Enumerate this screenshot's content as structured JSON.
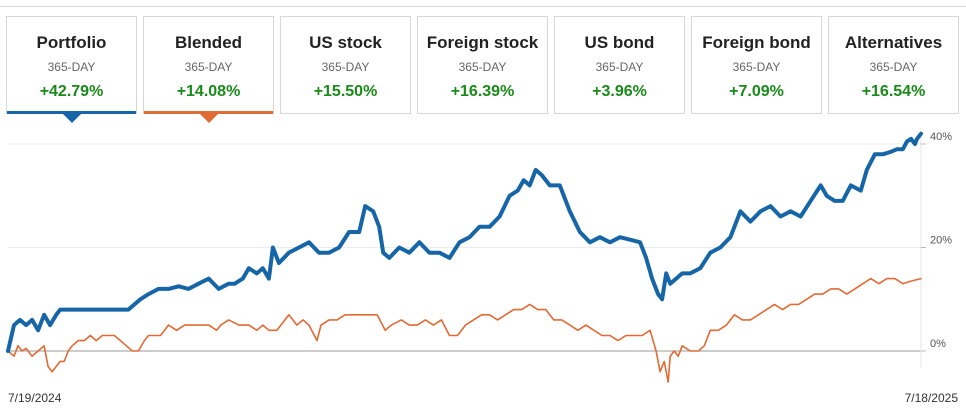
{
  "tabs": [
    {
      "label": "Portfolio",
      "period": "365-DAY",
      "return": "+42.79%",
      "selected": true,
      "underline_color": "#1565a7"
    },
    {
      "label": "Blended",
      "period": "365-DAY",
      "return": "+14.08%",
      "selected": true,
      "underline_color": "#e06b35"
    },
    {
      "label": "US stock",
      "period": "365-DAY",
      "return": "+15.50%",
      "selected": false
    },
    {
      "label": "Foreign stock",
      "period": "365-DAY",
      "return": "+16.39%",
      "selected": false
    },
    {
      "label": "US bond",
      "period": "365-DAY",
      "return": "+3.96%",
      "selected": false
    },
    {
      "label": "Foreign bond",
      "period": "365-DAY",
      "return": "+7.09%",
      "selected": false
    },
    {
      "label": "Alternatives",
      "period": "365-DAY",
      "return": "+16.54%",
      "selected": false
    }
  ],
  "colors": {
    "positive": "#1a8a1a",
    "portfolio": "#1565a7",
    "blended": "#e06b35",
    "zero_line": "#999999",
    "grid": "#ececec"
  },
  "chart_data": {
    "type": "line",
    "x_start_label": "7/19/2024",
    "x_end_label": "7/18/2025",
    "ylim": [
      -6,
      43
    ],
    "yticks": [
      0,
      20,
      40
    ],
    "ytick_labels": [
      "0%",
      "20%",
      "40%"
    ],
    "grid": true,
    "legend": "none",
    "series": [
      {
        "name": "Portfolio",
        "color": "#1565a7",
        "points": [
          [
            0,
            0
          ],
          [
            3,
            5
          ],
          [
            6,
            6
          ],
          [
            9,
            5
          ],
          [
            12,
            6
          ],
          [
            15,
            4
          ],
          [
            18,
            7
          ],
          [
            21,
            5
          ],
          [
            24,
            7
          ],
          [
            26,
            8
          ],
          [
            30,
            8
          ],
          [
            40,
            8
          ],
          [
            50,
            8
          ],
          [
            60,
            8
          ],
          [
            63,
            9
          ],
          [
            66,
            10
          ],
          [
            70,
            11
          ],
          [
            75,
            12
          ],
          [
            80,
            12
          ],
          [
            85,
            12.5
          ],
          [
            90,
            12
          ],
          [
            95,
            13
          ],
          [
            100,
            14
          ],
          [
            105,
            12
          ],
          [
            110,
            13
          ],
          [
            113,
            13
          ],
          [
            117,
            14
          ],
          [
            120,
            16
          ],
          [
            124,
            15
          ],
          [
            127,
            16
          ],
          [
            130,
            14
          ],
          [
            132,
            20
          ],
          [
            135,
            17
          ],
          [
            140,
            19
          ],
          [
            145,
            20
          ],
          [
            150,
            21
          ],
          [
            155,
            19
          ],
          [
            160,
            19
          ],
          [
            165,
            20
          ],
          [
            170,
            23
          ],
          [
            175,
            23
          ],
          [
            178,
            28
          ],
          [
            182,
            27
          ],
          [
            185,
            24
          ],
          [
            187,
            19
          ],
          [
            190,
            18
          ],
          [
            195,
            20
          ],
          [
            200,
            19
          ],
          [
            205,
            21
          ],
          [
            210,
            19
          ],
          [
            215,
            19
          ],
          [
            220,
            18
          ],
          [
            225,
            21
          ],
          [
            230,
            22
          ],
          [
            235,
            24
          ],
          [
            240,
            24
          ],
          [
            245,
            26
          ],
          [
            250,
            30
          ],
          [
            254,
            31
          ],
          [
            257,
            33
          ],
          [
            260,
            32
          ],
          [
            263,
            35
          ],
          [
            266,
            34
          ],
          [
            270,
            32
          ],
          [
            275,
            32
          ],
          [
            280,
            27
          ],
          [
            285,
            23
          ],
          [
            290,
            21
          ],
          [
            295,
            22
          ],
          [
            300,
            21
          ],
          [
            305,
            22
          ],
          [
            310,
            21.5
          ],
          [
            315,
            21
          ],
          [
            318,
            18
          ],
          [
            321,
            14
          ],
          [
            324,
            11
          ],
          [
            326,
            10
          ],
          [
            328,
            15
          ],
          [
            330,
            13
          ],
          [
            333,
            14
          ],
          [
            336,
            15
          ],
          [
            340,
            15
          ],
          [
            345,
            16
          ],
          [
            350,
            19
          ],
          [
            355,
            20
          ],
          [
            360,
            22
          ],
          [
            365,
            27
          ],
          [
            370,
            25
          ],
          [
            375,
            27
          ],
          [
            380,
            28
          ],
          [
            385,
            26
          ],
          [
            390,
            27
          ],
          [
            395,
            26
          ],
          [
            400,
            29
          ],
          [
            405,
            32
          ],
          [
            408,
            30
          ],
          [
            412,
            29
          ],
          [
            416,
            29
          ],
          [
            420,
            32
          ],
          [
            425,
            31
          ],
          [
            428,
            35
          ],
          [
            432,
            38
          ],
          [
            436,
            38
          ],
          [
            440,
            38.5
          ],
          [
            443,
            39
          ],
          [
            446,
            39
          ],
          [
            448,
            40.5
          ],
          [
            450,
            41
          ],
          [
            452,
            40
          ],
          [
            453,
            41
          ],
          [
            455,
            42
          ]
        ]
      },
      {
        "name": "Blended",
        "color": "#e06b35",
        "points": [
          [
            0,
            0
          ],
          [
            3,
            -1
          ],
          [
            5,
            1
          ],
          [
            7,
            0
          ],
          [
            9,
            0.5
          ],
          [
            12,
            -1
          ],
          [
            15,
            0
          ],
          [
            18,
            1
          ],
          [
            20,
            -3
          ],
          [
            22,
            -4
          ],
          [
            24,
            -3
          ],
          [
            26,
            -2
          ],
          [
            28,
            -2
          ],
          [
            30,
            0
          ],
          [
            32,
            1
          ],
          [
            35,
            2
          ],
          [
            38,
            2
          ],
          [
            41,
            3
          ],
          [
            44,
            2
          ],
          [
            47,
            3
          ],
          [
            50,
            3
          ],
          [
            53,
            3
          ],
          [
            56,
            2
          ],
          [
            59,
            1
          ],
          [
            62,
            0
          ],
          [
            65,
            0
          ],
          [
            68,
            2
          ],
          [
            70,
            3
          ],
          [
            73,
            3
          ],
          [
            76,
            3
          ],
          [
            80,
            5
          ],
          [
            84,
            4
          ],
          [
            88,
            5
          ],
          [
            90,
            5
          ],
          [
            95,
            5
          ],
          [
            100,
            5
          ],
          [
            104,
            4
          ],
          [
            106,
            5
          ],
          [
            110,
            6
          ],
          [
            115,
            5
          ],
          [
            120,
            5
          ],
          [
            124,
            4
          ],
          [
            127,
            5
          ],
          [
            130,
            4
          ],
          [
            134,
            4
          ],
          [
            136,
            5
          ],
          [
            140,
            7
          ],
          [
            144,
            5
          ],
          [
            147,
            6
          ],
          [
            150,
            5
          ],
          [
            154,
            2
          ],
          [
            156,
            5
          ],
          [
            160,
            6
          ],
          [
            164,
            6
          ],
          [
            168,
            7
          ],
          [
            172,
            7
          ],
          [
            176,
            7
          ],
          [
            180,
            7
          ],
          [
            184,
            7
          ],
          [
            188,
            4
          ],
          [
            191,
            5
          ],
          [
            196,
            6
          ],
          [
            200,
            5
          ],
          [
            204,
            5
          ],
          [
            208,
            6
          ],
          [
            212,
            5
          ],
          [
            216,
            6
          ],
          [
            220,
            3
          ],
          [
            224,
            3
          ],
          [
            228,
            5
          ],
          [
            232,
            6
          ],
          [
            236,
            7
          ],
          [
            240,
            7
          ],
          [
            244,
            6
          ],
          [
            248,
            7
          ],
          [
            252,
            8
          ],
          [
            256,
            8
          ],
          [
            260,
            9
          ],
          [
            264,
            8
          ],
          [
            268,
            8
          ],
          [
            272,
            6
          ],
          [
            276,
            6
          ],
          [
            280,
            5
          ],
          [
            284,
            4
          ],
          [
            288,
            5
          ],
          [
            292,
            4
          ],
          [
            296,
            3
          ],
          [
            300,
            3
          ],
          [
            304,
            2
          ],
          [
            308,
            3
          ],
          [
            312,
            3
          ],
          [
            316,
            3
          ],
          [
            320,
            4
          ],
          [
            323,
            0
          ],
          [
            325,
            -4
          ],
          [
            327,
            -2
          ],
          [
            329,
            -6
          ],
          [
            330,
            -1
          ],
          [
            332,
            0
          ],
          [
            334,
            -1
          ],
          [
            336,
            1
          ],
          [
            340,
            0
          ],
          [
            344,
            0
          ],
          [
            347,
            1
          ],
          [
            350,
            4
          ],
          [
            354,
            4
          ],
          [
            358,
            5
          ],
          [
            362,
            7
          ],
          [
            366,
            6
          ],
          [
            370,
            6
          ],
          [
            374,
            7
          ],
          [
            378,
            8
          ],
          [
            382,
            9
          ],
          [
            386,
            8
          ],
          [
            390,
            9
          ],
          [
            394,
            9
          ],
          [
            398,
            10
          ],
          [
            402,
            11
          ],
          [
            406,
            11
          ],
          [
            410,
            12
          ],
          [
            414,
            12
          ],
          [
            418,
            11
          ],
          [
            422,
            12
          ],
          [
            426,
            13
          ],
          [
            430,
            14
          ],
          [
            434,
            13
          ],
          [
            438,
            14
          ],
          [
            442,
            14
          ],
          [
            446,
            13
          ],
          [
            450,
            13.5
          ],
          [
            455,
            14
          ]
        ]
      }
    ]
  }
}
